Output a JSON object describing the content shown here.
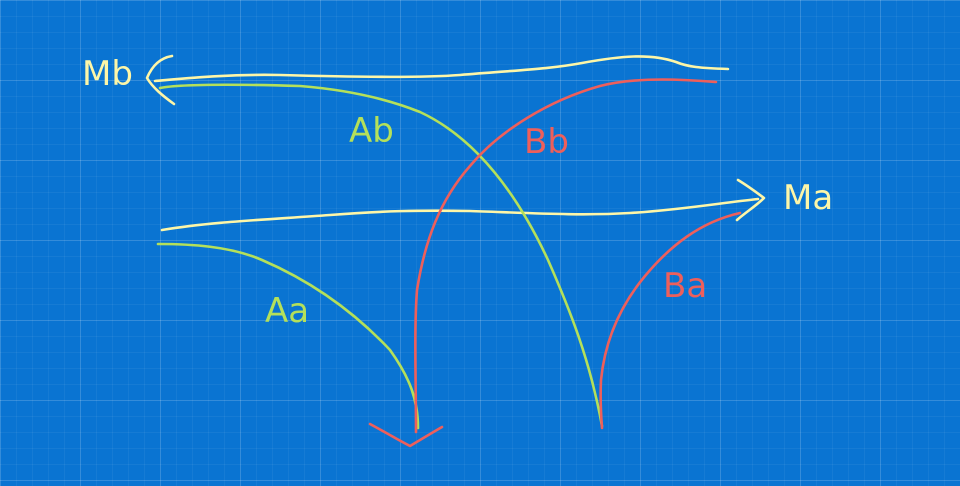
{
  "colors": {
    "background": "#0a74d2",
    "yellow": "#fdf6a8",
    "green": "#b4e05a",
    "red": "#ee5f5b"
  },
  "labels": {
    "ma": "Ma",
    "mb": "Mb",
    "aa": "Aa",
    "ab": "Ab",
    "ba": "Ba",
    "bb": "Bb"
  }
}
